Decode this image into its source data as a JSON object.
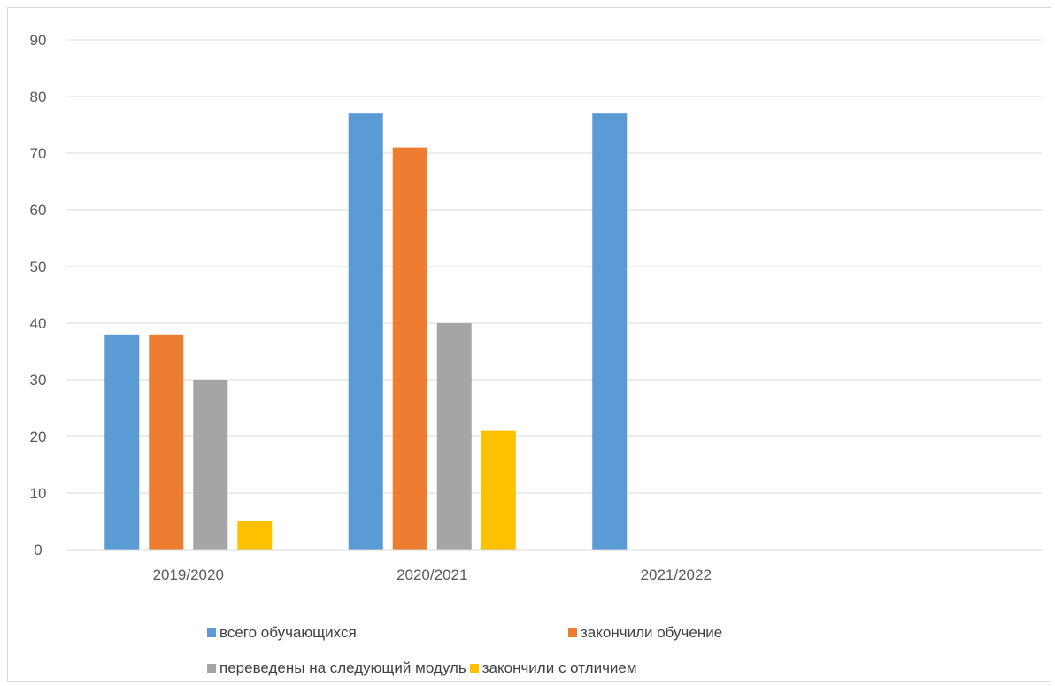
{
  "chart_data": {
    "type": "bar",
    "categories": [
      "2019/2020",
      "2020/2021",
      "2021/2022"
    ],
    "series": [
      {
        "name": "всего обучающихся",
        "values": [
          38,
          77,
          77
        ],
        "color": "#5b9bd5"
      },
      {
        "name": "закончили обучение",
        "values": [
          38,
          71,
          null
        ],
        "color": "#ed7d31"
      },
      {
        "name": "переведены на следующий модуль",
        "values": [
          30,
          40,
          null
        ],
        "color": "#a5a5a5"
      },
      {
        "name": "закончили с отличием",
        "values": [
          5,
          21,
          null
        ],
        "color": "#ffc000"
      }
    ],
    "yticks": [
      "0",
      "10",
      "20",
      "30",
      "40",
      "50",
      "60",
      "70",
      "80",
      "90"
    ],
    "ylim": [
      0,
      90
    ],
    "category_slots": 4,
    "title": "",
    "xlabel": "",
    "ylabel": "",
    "grid": true,
    "legend_position": "bottom"
  }
}
